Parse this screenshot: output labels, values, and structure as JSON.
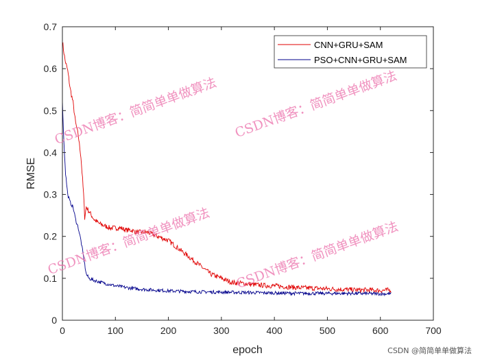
{
  "chart_data": {
    "type": "line",
    "title": "",
    "xlabel": "epoch",
    "ylabel": "RMSE",
    "xlim": [
      0,
      700
    ],
    "ylim": [
      0,
      0.7
    ],
    "xticks": [
      "0",
      "100",
      "200",
      "300",
      "400",
      "500",
      "600",
      "700"
    ],
    "yticks": [
      "0",
      "0.1",
      "0.2",
      "0.3",
      "0.4",
      "0.5",
      "0.6",
      "0.7"
    ],
    "grid": false,
    "legend_position": "top-right",
    "series": [
      {
        "name": "CNN+GRU+SAM",
        "color": "#e00000",
        "x": [
          0,
          5,
          10,
          15,
          20,
          25,
          30,
          35,
          40,
          42,
          45,
          50,
          60,
          70,
          80,
          90,
          100,
          110,
          120,
          130,
          140,
          150,
          160,
          170,
          180,
          190,
          200,
          210,
          220,
          230,
          240,
          250,
          260,
          270,
          280,
          290,
          300,
          320,
          340,
          360,
          380,
          400,
          420,
          440,
          460,
          480,
          500,
          520,
          540,
          560,
          580,
          600,
          620
        ],
        "y": [
          0.665,
          0.62,
          0.595,
          0.55,
          0.52,
          0.47,
          0.44,
          0.39,
          0.3,
          0.245,
          0.27,
          0.26,
          0.24,
          0.23,
          0.225,
          0.22,
          0.22,
          0.22,
          0.215,
          0.215,
          0.21,
          0.21,
          0.21,
          0.205,
          0.2,
          0.195,
          0.19,
          0.18,
          0.17,
          0.16,
          0.15,
          0.14,
          0.13,
          0.12,
          0.11,
          0.105,
          0.1,
          0.09,
          0.088,
          0.085,
          0.083,
          0.082,
          0.08,
          0.078,
          0.077,
          0.076,
          0.075,
          0.074,
          0.073,
          0.072,
          0.072,
          0.071,
          0.072
        ]
      },
      {
        "name": "PSO+CNN+GRU+SAM",
        "color": "#00008b",
        "x": [
          0,
          3,
          6,
          10,
          15,
          20,
          25,
          30,
          35,
          40,
          45,
          50,
          60,
          80,
          100,
          120,
          140,
          160,
          200,
          250,
          300,
          350,
          400,
          450,
          500,
          550,
          600,
          620
        ],
        "y": [
          0.52,
          0.42,
          0.35,
          0.3,
          0.28,
          0.27,
          0.24,
          0.22,
          0.19,
          0.15,
          0.11,
          0.1,
          0.095,
          0.088,
          0.082,
          0.078,
          0.075,
          0.073,
          0.07,
          0.068,
          0.067,
          0.066,
          0.065,
          0.064,
          0.064,
          0.064,
          0.063,
          0.063
        ]
      }
    ]
  },
  "watermark": "CSDN博客：简简单单做算法",
  "credit": "CSDN @简简单单做算法"
}
